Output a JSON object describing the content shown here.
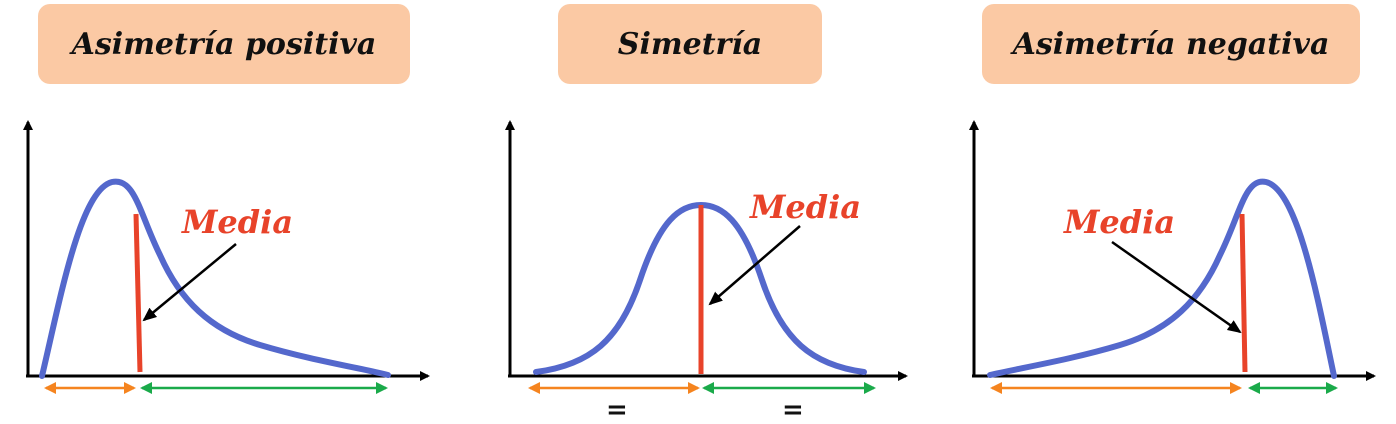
{
  "panels": [
    {
      "title": "Asimetría positiva",
      "label": "Media"
    },
    {
      "title": "Simetría",
      "label": "Media",
      "equal_left": "=",
      "equal_right": "="
    },
    {
      "title": "Asimetría negativa",
      "label": "Media"
    }
  ],
  "colors": {
    "curve": "#5468cc",
    "mean_line": "#e8432a",
    "left_arrow": "#f5841f",
    "right_arrow": "#1aaa4a",
    "title_bg": "#fbc9a4"
  }
}
